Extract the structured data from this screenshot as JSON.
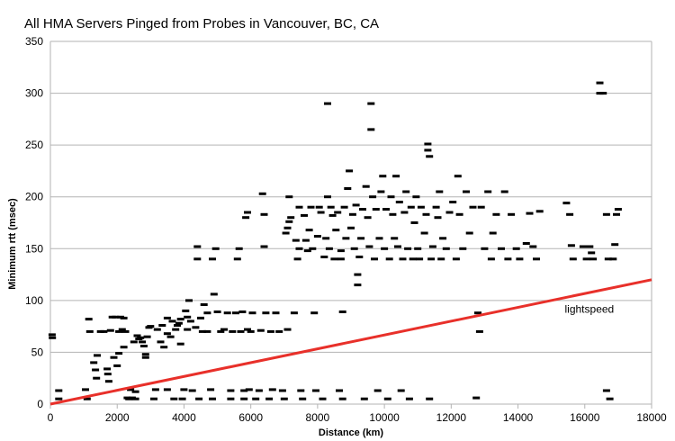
{
  "chart_data": {
    "type": "scatter",
    "title": "All HMA Servers Pinged from Probes in Vancouver, BC, CA",
    "xlabel": "Distance (km)",
    "ylabel": "Minimum rtt (msec)",
    "xlim": [
      0,
      18000
    ],
    "ylim": [
      0,
      350
    ],
    "xticks": [
      0,
      2000,
      4000,
      6000,
      8000,
      10000,
      12000,
      14000,
      16000,
      18000
    ],
    "yticks": [
      0,
      50,
      100,
      150,
      200,
      250,
      300,
      350
    ],
    "grid": true,
    "marker": "dash",
    "colors": {
      "points": "#000000",
      "lightspeed": "#e8302a",
      "grid": "#b3b3b3"
    },
    "series": [
      {
        "kind": "points",
        "points": [
          [
            50,
            67
          ],
          [
            60,
            64
          ],
          [
            250,
            13
          ],
          [
            250,
            5
          ],
          [
            1050,
            14
          ],
          [
            1100,
            5
          ],
          [
            1150,
            82
          ],
          [
            1180,
            70
          ],
          [
            1300,
            40
          ],
          [
            1350,
            33
          ],
          [
            1380,
            25
          ],
          [
            1400,
            47
          ],
          [
            1500,
            70
          ],
          [
            1600,
            70
          ],
          [
            1700,
            34
          ],
          [
            1720,
            29
          ],
          [
            1750,
            22
          ],
          [
            1800,
            71
          ],
          [
            1850,
            84
          ],
          [
            1900,
            45
          ],
          [
            1950,
            84
          ],
          [
            2000,
            37
          ],
          [
            2050,
            49
          ],
          [
            2050,
            70
          ],
          [
            2100,
            84
          ],
          [
            2150,
            72
          ],
          [
            2200,
            83
          ],
          [
            2200,
            55
          ],
          [
            2250,
            70
          ],
          [
            2300,
            6
          ],
          [
            2350,
            5
          ],
          [
            2400,
            14
          ],
          [
            2450,
            6
          ],
          [
            2500,
            60
          ],
          [
            2550,
            12
          ],
          [
            2550,
            5
          ],
          [
            2600,
            66
          ],
          [
            2650,
            63
          ],
          [
            2700,
            64
          ],
          [
            2750,
            60
          ],
          [
            2800,
            56
          ],
          [
            2850,
            48
          ],
          [
            2850,
            45
          ],
          [
            2900,
            65
          ],
          [
            2950,
            74
          ],
          [
            3000,
            75
          ],
          [
            3100,
            5
          ],
          [
            3150,
            14
          ],
          [
            3200,
            72
          ],
          [
            3300,
            60
          ],
          [
            3350,
            76
          ],
          [
            3400,
            55
          ],
          [
            3500,
            83
          ],
          [
            3500,
            68
          ],
          [
            3500,
            14
          ],
          [
            3600,
            65
          ],
          [
            3650,
            80
          ],
          [
            3700,
            5
          ],
          [
            3750,
            72
          ],
          [
            3800,
            76
          ],
          [
            3850,
            78
          ],
          [
            3900,
            82
          ],
          [
            3900,
            58
          ],
          [
            3950,
            5
          ],
          [
            4000,
            14
          ],
          [
            4050,
            90
          ],
          [
            4100,
            72
          ],
          [
            4100,
            84
          ],
          [
            4150,
            100
          ],
          [
            4200,
            80
          ],
          [
            4250,
            13
          ],
          [
            4350,
            74
          ],
          [
            4400,
            140
          ],
          [
            4400,
            152
          ],
          [
            4450,
            5
          ],
          [
            4500,
            83
          ],
          [
            4550,
            70
          ],
          [
            4600,
            96
          ],
          [
            4700,
            88
          ],
          [
            4700,
            70
          ],
          [
            4800,
            14
          ],
          [
            4850,
            5
          ],
          [
            4850,
            140
          ],
          [
            4900,
            106
          ],
          [
            4950,
            150
          ],
          [
            5000,
            89
          ],
          [
            5100,
            70
          ],
          [
            5200,
            72
          ],
          [
            5300,
            88
          ],
          [
            5400,
            13
          ],
          [
            5400,
            5
          ],
          [
            5450,
            70
          ],
          [
            5550,
            88
          ],
          [
            5600,
            140
          ],
          [
            5650,
            150
          ],
          [
            5700,
            70
          ],
          [
            5750,
            89
          ],
          [
            5800,
            13
          ],
          [
            5800,
            5
          ],
          [
            5850,
            180
          ],
          [
            5900,
            185
          ],
          [
            5900,
            72
          ],
          [
            5950,
            14
          ],
          [
            6000,
            70
          ],
          [
            6050,
            88
          ],
          [
            6150,
            5
          ],
          [
            6250,
            13
          ],
          [
            6300,
            71
          ],
          [
            6350,
            203
          ],
          [
            6400,
            183
          ],
          [
            6400,
            152
          ],
          [
            6450,
            88
          ],
          [
            6550,
            5
          ],
          [
            6600,
            70
          ],
          [
            6650,
            14
          ],
          [
            6750,
            88
          ],
          [
            6850,
            70
          ],
          [
            6950,
            13
          ],
          [
            7000,
            5
          ],
          [
            7050,
            165
          ],
          [
            7100,
            170
          ],
          [
            7100,
            72
          ],
          [
            7150,
            176
          ],
          [
            7150,
            200
          ],
          [
            7200,
            180
          ],
          [
            7300,
            88
          ],
          [
            7350,
            158
          ],
          [
            7400,
            140
          ],
          [
            7450,
            150
          ],
          [
            7450,
            190
          ],
          [
            7500,
            13
          ],
          [
            7550,
            5
          ],
          [
            7600,
            182
          ],
          [
            7650,
            158
          ],
          [
            7700,
            148
          ],
          [
            7750,
            168
          ],
          [
            7800,
            190
          ],
          [
            7850,
            150
          ],
          [
            7900,
            88
          ],
          [
            7950,
            13
          ],
          [
            8000,
            162
          ],
          [
            8050,
            190
          ],
          [
            8100,
            185
          ],
          [
            8150,
            5
          ],
          [
            8200,
            142
          ],
          [
            8250,
            160
          ],
          [
            8300,
            290
          ],
          [
            8300,
            200
          ],
          [
            8350,
            150
          ],
          [
            8400,
            190
          ],
          [
            8450,
            182
          ],
          [
            8500,
            140
          ],
          [
            8550,
            168
          ],
          [
            8600,
            185
          ],
          [
            8650,
            13
          ],
          [
            8700,
            140
          ],
          [
            8700,
            148
          ],
          [
            8750,
            89
          ],
          [
            8750,
            5
          ],
          [
            8800,
            190
          ],
          [
            8850,
            160
          ],
          [
            8900,
            208
          ],
          [
            8950,
            225
          ],
          [
            9000,
            170
          ],
          [
            9050,
            183
          ],
          [
            9100,
            150
          ],
          [
            9150,
            192
          ],
          [
            9200,
            125
          ],
          [
            9200,
            115
          ],
          [
            9250,
            142
          ],
          [
            9300,
            160
          ],
          [
            9350,
            188
          ],
          [
            9400,
            5
          ],
          [
            9450,
            210
          ],
          [
            9500,
            180
          ],
          [
            9550,
            152
          ],
          [
            9600,
            265
          ],
          [
            9600,
            290
          ],
          [
            9650,
            200
          ],
          [
            9700,
            140
          ],
          [
            9750,
            188
          ],
          [
            9800,
            13
          ],
          [
            9850,
            160
          ],
          [
            9900,
            205
          ],
          [
            9950,
            220
          ],
          [
            10000,
            150
          ],
          [
            10050,
            188
          ],
          [
            10100,
            5
          ],
          [
            10150,
            140
          ],
          [
            10200,
            200
          ],
          [
            10250,
            183
          ],
          [
            10300,
            160
          ],
          [
            10350,
            220
          ],
          [
            10400,
            152
          ],
          [
            10450,
            195
          ],
          [
            10500,
            13
          ],
          [
            10550,
            140
          ],
          [
            10600,
            185
          ],
          [
            10650,
            205
          ],
          [
            10700,
            150
          ],
          [
            10750,
            5
          ],
          [
            10800,
            190
          ],
          [
            10850,
            140
          ],
          [
            10900,
            175
          ],
          [
            10950,
            200
          ],
          [
            11000,
            150
          ],
          [
            11050,
            140
          ],
          [
            11100,
            190
          ],
          [
            11200,
            165
          ],
          [
            11250,
            183
          ],
          [
            11300,
            251
          ],
          [
            11300,
            245
          ],
          [
            11350,
            239
          ],
          [
            11350,
            5
          ],
          [
            11400,
            140
          ],
          [
            11450,
            152
          ],
          [
            11550,
            190
          ],
          [
            11600,
            180
          ],
          [
            11650,
            205
          ],
          [
            11700,
            140
          ],
          [
            11750,
            160
          ],
          [
            11850,
            150
          ],
          [
            11950,
            185
          ],
          [
            12050,
            195
          ],
          [
            12150,
            140
          ],
          [
            12200,
            220
          ],
          [
            12250,
            183
          ],
          [
            12350,
            150
          ],
          [
            12450,
            205
          ],
          [
            12550,
            165
          ],
          [
            12650,
            190
          ],
          [
            12800,
            88
          ],
          [
            12850,
            70
          ],
          [
            12750,
            6
          ],
          [
            12900,
            190
          ],
          [
            13000,
            150
          ],
          [
            13100,
            205
          ],
          [
            13200,
            140
          ],
          [
            13250,
            165
          ],
          [
            13350,
            183
          ],
          [
            13500,
            150
          ],
          [
            13600,
            205
          ],
          [
            13700,
            140
          ],
          [
            13800,
            183
          ],
          [
            13950,
            150
          ],
          [
            14050,
            140
          ],
          [
            14250,
            155
          ],
          [
            14350,
            184
          ],
          [
            14450,
            152
          ],
          [
            14550,
            140
          ],
          [
            14650,
            186
          ],
          [
            15450,
            194
          ],
          [
            15550,
            183
          ],
          [
            15600,
            153
          ],
          [
            15650,
            140
          ],
          [
            15950,
            152
          ],
          [
            16050,
            140
          ],
          [
            16150,
            152
          ],
          [
            16200,
            146
          ],
          [
            16250,
            140
          ],
          [
            16450,
            310
          ],
          [
            16450,
            300
          ],
          [
            16550,
            300
          ],
          [
            16650,
            183
          ],
          [
            16650,
            13
          ],
          [
            16700,
            140
          ],
          [
            16750,
            5
          ],
          [
            16850,
            140
          ],
          [
            16900,
            154
          ],
          [
            16950,
            183
          ],
          [
            17000,
            188
          ]
        ]
      },
      {
        "kind": "line",
        "annotation": "lightspeed",
        "points": [
          [
            0,
            0
          ],
          [
            18000,
            120
          ]
        ]
      }
    ],
    "annotations": [
      {
        "text": "lightspeed",
        "x": 15400,
        "y": 88
      }
    ]
  }
}
